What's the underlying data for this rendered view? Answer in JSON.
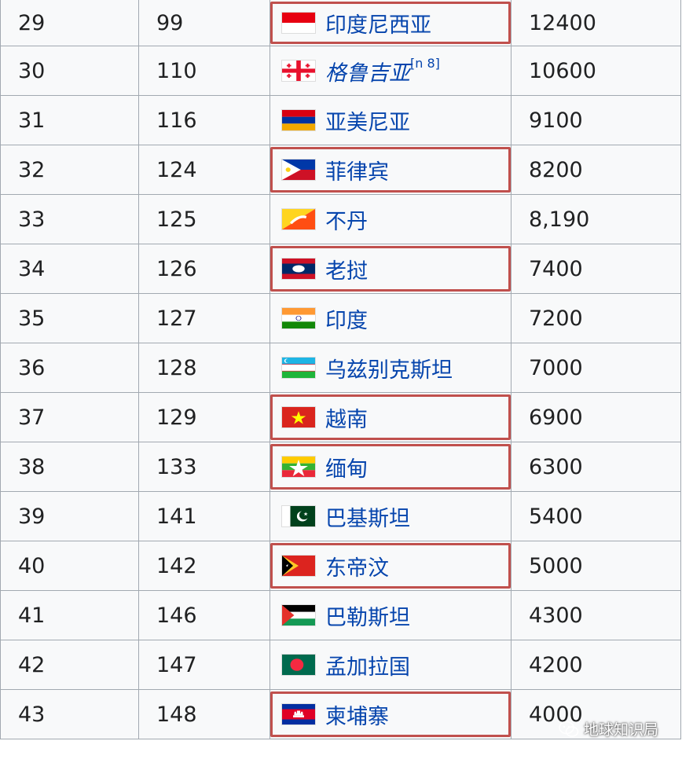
{
  "rows": [
    {
      "rank": "29",
      "world_rank": "99",
      "country": "印度尼西亚",
      "value": "12400",
      "flag": "indonesia-flag",
      "highlight": true
    },
    {
      "rank": "30",
      "world_rank": "110",
      "country": "格鲁吉亚",
      "value": "10600",
      "flag": "georgia-flag",
      "highlight": false,
      "italic": true,
      "note": "[n 8]"
    },
    {
      "rank": "31",
      "world_rank": "116",
      "country": "亚美尼亚",
      "value": "9100",
      "flag": "armenia-flag",
      "highlight": false
    },
    {
      "rank": "32",
      "world_rank": "124",
      "country": "菲律宾",
      "value": "8200",
      "flag": "philippines-flag",
      "highlight": true
    },
    {
      "rank": "33",
      "world_rank": "125",
      "country": "不丹",
      "value": "8,190",
      "flag": "bhutan-flag",
      "highlight": false
    },
    {
      "rank": "34",
      "world_rank": "126",
      "country": "老挝",
      "value": "7400",
      "flag": "laos-flag",
      "highlight": true
    },
    {
      "rank": "35",
      "world_rank": "127",
      "country": "印度",
      "value": "7200",
      "flag": "india-flag",
      "highlight": false
    },
    {
      "rank": "36",
      "world_rank": "128",
      "country": "乌兹别克斯坦",
      "value": "7000",
      "flag": "uzbekistan-flag",
      "highlight": false
    },
    {
      "rank": "37",
      "world_rank": "129",
      "country": "越南",
      "value": "6900",
      "flag": "vietnam-flag",
      "highlight": true
    },
    {
      "rank": "38",
      "world_rank": "133",
      "country": "缅甸",
      "value": "6300",
      "flag": "myanmar-flag",
      "highlight": true
    },
    {
      "rank": "39",
      "world_rank": "141",
      "country": "巴基斯坦",
      "value": "5400",
      "flag": "pakistan-flag",
      "highlight": false
    },
    {
      "rank": "40",
      "world_rank": "142",
      "country": "东帝汶",
      "value": "5000",
      "flag": "east-timor-flag",
      "highlight": true
    },
    {
      "rank": "41",
      "world_rank": "146",
      "country": "巴勒斯坦",
      "value": "4300",
      "flag": "palestine-flag",
      "highlight": false
    },
    {
      "rank": "42",
      "world_rank": "147",
      "country": "孟加拉国",
      "value": "4200",
      "flag": "bangladesh-flag",
      "highlight": false
    },
    {
      "rank": "43",
      "world_rank": "148",
      "country": "柬埔寨",
      "value": "4000",
      "flag": "cambodia-flag",
      "highlight": true
    }
  ],
  "watermark": "地球知识局",
  "colors": {
    "highlight_border": "#c0504d",
    "cell_bg": "#f8f9fa",
    "grid": "#a2a9b1",
    "link": "#0645ad"
  }
}
